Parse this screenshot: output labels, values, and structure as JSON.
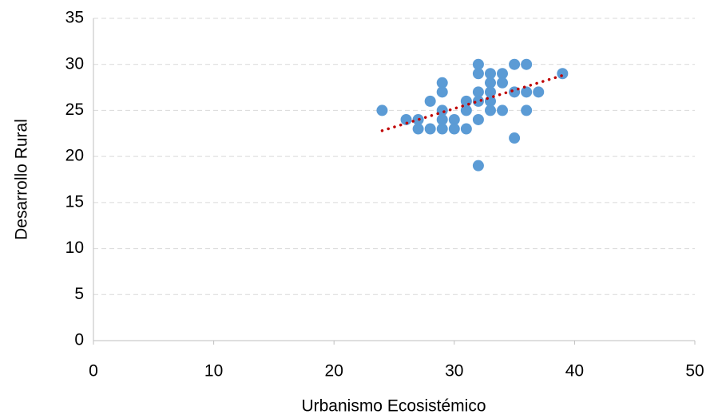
{
  "chart_data": {
    "type": "scatter",
    "x_label": "Urbanismo Ecosistémico",
    "y_label": "Desarrollo Rural",
    "xlim": [
      0,
      50
    ],
    "xticks": [
      0,
      10,
      20,
      30,
      40,
      50
    ],
    "ylim": [
      0,
      35
    ],
    "yticks": [
      0,
      5,
      10,
      15,
      20,
      25,
      30,
      35
    ],
    "grid": true,
    "color": "#5b9bd5",
    "x": [
      24,
      26,
      27,
      27,
      28,
      28,
      29,
      29,
      29,
      29,
      29,
      30,
      30,
      31,
      31,
      31,
      32,
      32,
      32,
      32,
      32,
      32,
      33,
      33,
      33,
      33,
      33,
      34,
      34,
      34,
      35,
      35,
      35,
      36,
      36,
      36,
      37,
      39
    ],
    "values": [
      25,
      24,
      24,
      23,
      23,
      26,
      28,
      27,
      25,
      24,
      23,
      24,
      23,
      26,
      25,
      23,
      30,
      29,
      27,
      26,
      24,
      19,
      29,
      28,
      27,
      26,
      25,
      29,
      28,
      25,
      30,
      27,
      22,
      30,
      27,
      25,
      27,
      29
    ],
    "trendline": {
      "color": "#c00000",
      "x": [
        24,
        39
      ],
      "values": [
        22.8,
        28.8
      ]
    }
  }
}
